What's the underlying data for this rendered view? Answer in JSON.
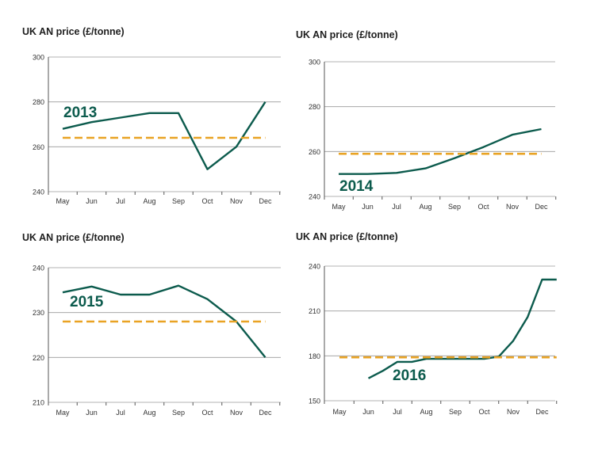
{
  "colors": {
    "series": "#0c5b4d",
    "average": "#e9a324"
  },
  "chart_data": [
    {
      "type": "line",
      "title": "UK AN price (£/tonne)",
      "year_label": "2013",
      "categories": [
        "May",
        "Jun",
        "Jul",
        "Aug",
        "Sep",
        "Oct",
        "Nov",
        "Dec"
      ],
      "yticks": [
        "240",
        "260",
        "280",
        "300"
      ],
      "ylim": [
        240,
        300
      ],
      "grid": true,
      "series": [
        {
          "role": "price",
          "points": [
            [
              0,
              268
            ],
            [
              1,
              271
            ],
            [
              2,
              273
            ],
            [
              3,
              275
            ],
            [
              4,
              275
            ],
            [
              5,
              250
            ],
            [
              6,
              260
            ],
            [
              7,
              280
            ]
          ]
        },
        {
          "role": "average",
          "points": [
            [
              0,
              264
            ],
            [
              7,
              264
            ]
          ]
        }
      ]
    },
    {
      "type": "line",
      "title": "UK AN price (£/tonne)",
      "year_label": "2014",
      "categories": [
        "May",
        "Jun",
        "Jul",
        "Aug",
        "Sep",
        "Oct",
        "Nov",
        "Dec"
      ],
      "yticks": [
        "240",
        "260",
        "280",
        "300"
      ],
      "ylim": [
        240,
        300
      ],
      "grid": true,
      "series": [
        {
          "role": "price",
          "points": [
            [
              0,
              250
            ],
            [
              1,
              250
            ],
            [
              2,
              250.5
            ],
            [
              3,
              252.5
            ],
            [
              4,
              257
            ],
            [
              5,
              262
            ],
            [
              6,
              267.5
            ],
            [
              7,
              270
            ]
          ]
        },
        {
          "role": "average",
          "points": [
            [
              0,
              259
            ],
            [
              7,
              259
            ]
          ]
        }
      ]
    },
    {
      "type": "line",
      "title": "UK AN price (£/tonne)",
      "year_label": "2015",
      "categories": [
        "May",
        "Jun",
        "Jul",
        "Aug",
        "Sep",
        "Oct",
        "Nov",
        "Dec"
      ],
      "yticks": [
        "210",
        "220",
        "230",
        "240"
      ],
      "ylim": [
        210,
        240
      ],
      "grid": true,
      "series": [
        {
          "role": "price",
          "points": [
            [
              0,
              234.5
            ],
            [
              1,
              235.8
            ],
            [
              2,
              234
            ],
            [
              3,
              234
            ],
            [
              4,
              236
            ],
            [
              5,
              233
            ],
            [
              6,
              228
            ],
            [
              7,
              220
            ]
          ]
        },
        {
          "role": "average",
          "points": [
            [
              0,
              228
            ],
            [
              7,
              228
            ]
          ]
        }
      ]
    },
    {
      "type": "line",
      "title": "UK AN price (£/tonne)",
      "year_label": "2016",
      "categories": [
        "May",
        "Jun",
        "Jul",
        "Aug",
        "Sep",
        "Oct",
        "Nov",
        "Dec"
      ],
      "yticks": [
        "150",
        "180",
        "210",
        "240"
      ],
      "ylim": [
        150,
        240
      ],
      "grid": true,
      "series": [
        {
          "role": "price",
          "points": [
            [
              1,
              165
            ],
            [
              1.5,
              170
            ],
            [
              2,
              176
            ],
            [
              2.5,
              176
            ],
            [
              3,
              178
            ],
            [
              4,
              178
            ],
            [
              5,
              178
            ],
            [
              5.5,
              179.5
            ],
            [
              6,
              190
            ],
            [
              6.5,
              206
            ],
            [
              7,
              231
            ],
            [
              7.5,
              231
            ]
          ]
        },
        {
          "role": "average",
          "points": [
            [
              0,
              179
            ],
            [
              7.5,
              179
            ]
          ]
        }
      ]
    }
  ]
}
